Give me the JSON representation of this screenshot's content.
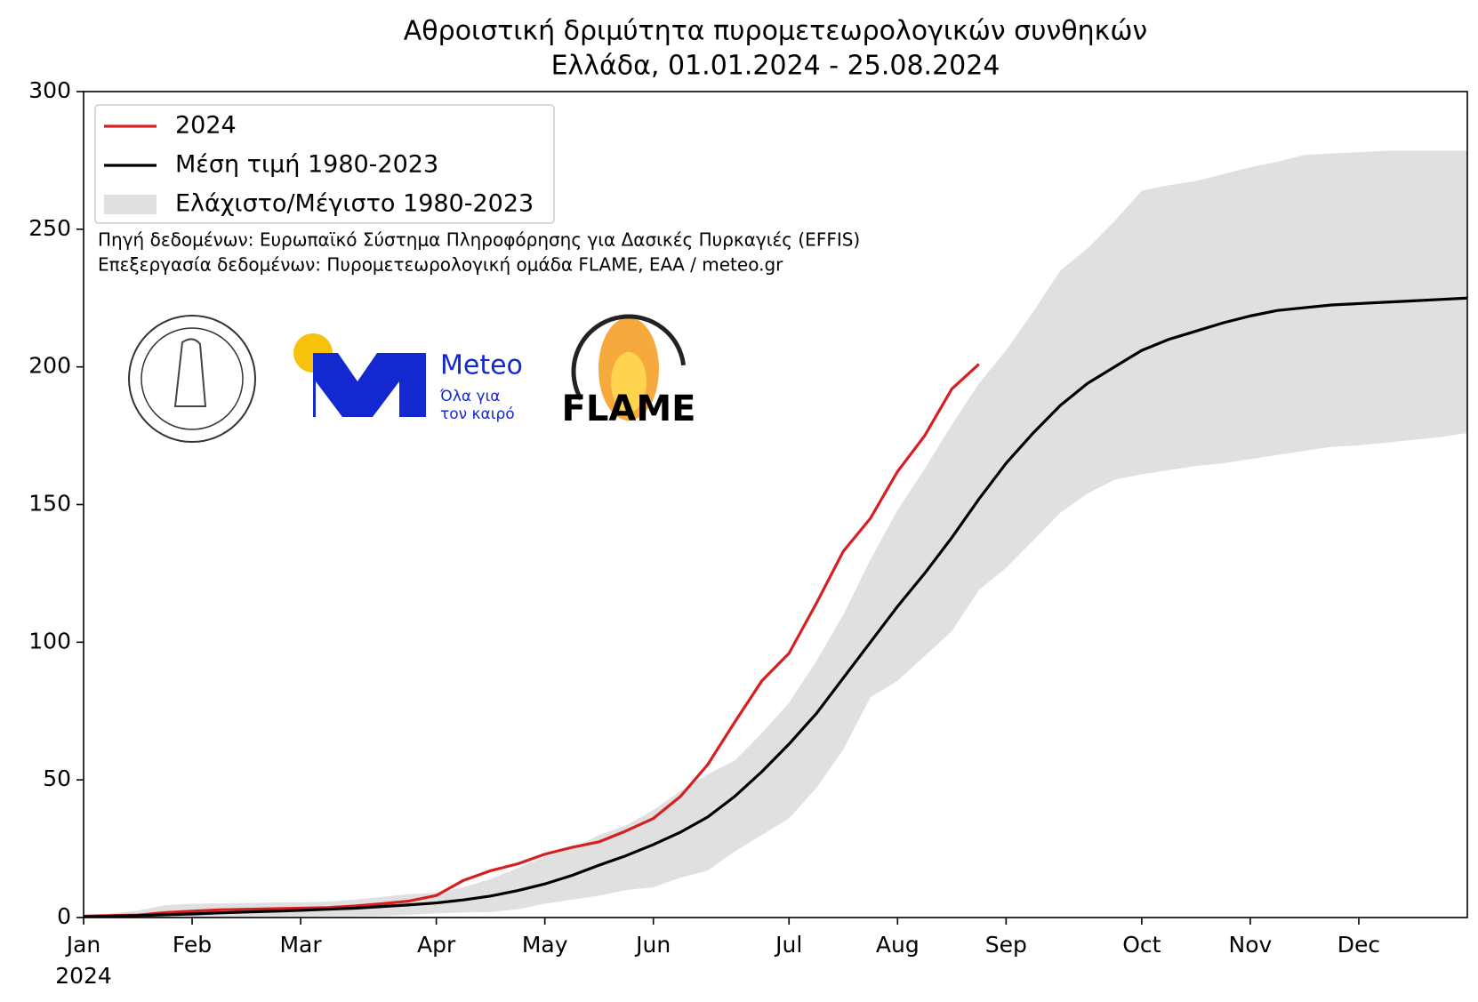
{
  "chart_data": {
    "type": "line",
    "title": "Αθροιστική δριμύτητα πυρομετεωρολογικών συνθηκών",
    "subtitle": "Ελλάδα, 01.01.2024 - 25.08.2024",
    "annotations": [
      "Πηγή δεδομένων: Ευρωπαϊκό Σύστημα Πληροφόρησης για Δασικές Πυρκαγιές (EFFIS)",
      "Επεξεργασία δεδομένων: Πυρομετεωρολογική ομάδα FLAME, ΕΑΑ / meteo.gr"
    ],
    "x": [
      0,
      7,
      14,
      21,
      28,
      35,
      42,
      49,
      56,
      63,
      70,
      77,
      84,
      91,
      98,
      105,
      112,
      119,
      126,
      133,
      140,
      147,
      154,
      161,
      168,
      175,
      182,
      189,
      196,
      203,
      210,
      217,
      224,
      231,
      238,
      245,
      252,
      259,
      266,
      273,
      280,
      287,
      294,
      301,
      308,
      315,
      322,
      329,
      336,
      343,
      350,
      357
    ],
    "xlim": [
      0,
      357
    ],
    "xticks": [
      {
        "value": 0,
        "label": "Jan"
      },
      {
        "value": 28,
        "label": "Feb"
      },
      {
        "value": 56,
        "label": "Mar"
      },
      {
        "value": 91,
        "label": "Apr"
      },
      {
        "value": 119,
        "label": "May"
      },
      {
        "value": 147,
        "label": "Jun"
      },
      {
        "value": 182,
        "label": "Jul"
      },
      {
        "value": 210,
        "label": "Aug"
      },
      {
        "value": 238,
        "label": "Sep"
      },
      {
        "value": 273,
        "label": "Oct"
      },
      {
        "value": 301,
        "label": "Nov"
      },
      {
        "value": 329,
        "label": "Dec"
      }
    ],
    "xtick_year": "2024",
    "ylim": [
      0,
      300
    ],
    "yticks": [
      0,
      50,
      100,
      150,
      200,
      250,
      300
    ],
    "legend": "upper left",
    "series": [
      {
        "name": "2024",
        "color": "#d62020",
        "values": [
          0.5,
          0.7,
          0.9,
          1.8,
          2.3,
          2.8,
          3,
          3.2,
          3.4,
          3.6,
          4.2,
          5,
          6,
          8,
          13.5,
          17,
          19.5,
          23,
          25.5,
          27.5,
          31.5,
          36,
          44,
          55.5,
          71,
          86,
          96,
          114,
          133,
          145,
          162,
          175,
          192,
          201,
          null,
          null,
          null,
          null,
          null,
          null,
          null,
          null,
          null,
          null,
          null,
          null,
          null,
          null,
          null,
          null,
          null,
          null
        ]
      },
      {
        "name": "Μέση τιμή 1980-2023",
        "color": "#000000",
        "values": [
          0.3,
          0.5,
          0.7,
          1,
          1.3,
          1.7,
          2,
          2.3,
          2.6,
          3,
          3.4,
          4,
          4.6,
          5.3,
          6.4,
          7.8,
          9.8,
          12.2,
          15.3,
          19,
          22.5,
          26.5,
          31,
          36.5,
          44,
          53,
          63,
          74,
          87,
          100,
          113,
          125,
          138,
          152,
          165,
          176,
          186,
          194,
          200,
          206,
          210,
          213,
          216,
          218.5,
          220.5,
          221.5,
          222.5,
          223,
          223.5,
          224,
          224.5,
          225
        ]
      },
      {
        "name": "Ελάχιστο/Μέγιστο 1980-2023",
        "color": "#e0e0e0",
        "type": "band",
        "lower": [
          0,
          0,
          0,
          0,
          0.1,
          0.1,
          0.2,
          0.2,
          0.3,
          0.4,
          0.5,
          0.6,
          1,
          1.5,
          1.8,
          2,
          3,
          5,
          6.5,
          8,
          10,
          11,
          14.5,
          17,
          24,
          30,
          36,
          47,
          61,
          80,
          86,
          95,
          104,
          119,
          127,
          137,
          147,
          154,
          159,
          161,
          162.5,
          164,
          165,
          166.5,
          168,
          169.5,
          171,
          171.5,
          172.5,
          173.5,
          174.5,
          176
        ],
        "upper": [
          1,
          1.5,
          2.5,
          4.5,
          5,
          5.2,
          5.3,
          5.5,
          5.5,
          5.8,
          6.5,
          7.5,
          8.5,
          9,
          11,
          14,
          18,
          22,
          25,
          30,
          33.5,
          39,
          46,
          52,
          57,
          67,
          78,
          93,
          110,
          130,
          148,
          163,
          179,
          194,
          206,
          220,
          235,
          243,
          253,
          264,
          266,
          267.5,
          270,
          272.5,
          274.5,
          277,
          277.5,
          278,
          278.5,
          278.5,
          278.5,
          278.5
        ]
      }
    ]
  },
  "logos": {
    "meteo": "Meteo",
    "meteo_tagline": [
      "Όλα για",
      "τον καιρό"
    ],
    "flame": "FLAME"
  }
}
